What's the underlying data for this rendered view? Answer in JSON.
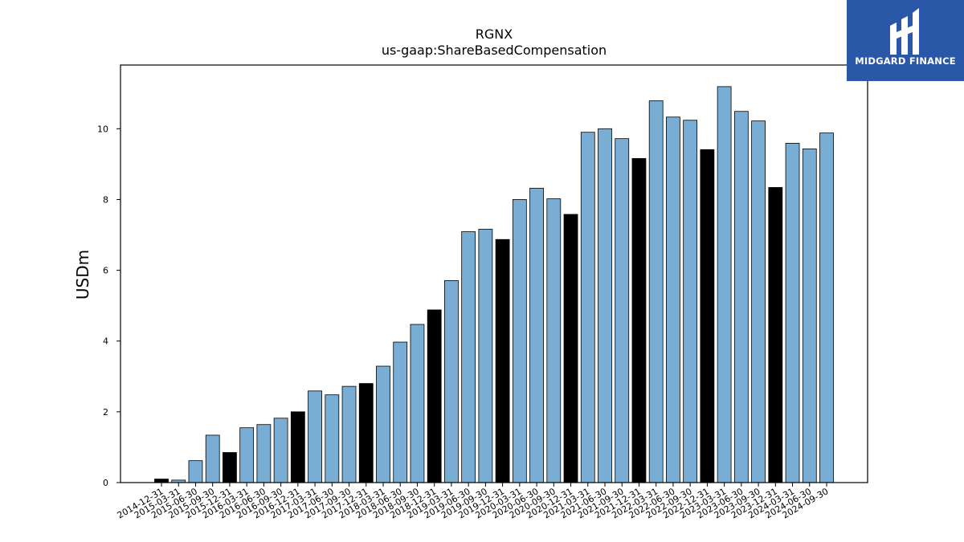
{
  "chart_data": {
    "type": "bar",
    "title": "RGNX",
    "subtitle": "us-gaap:ShareBasedCompensation",
    "xlabel": "",
    "ylabel": "USDm",
    "ylim": [
      0,
      11.8
    ],
    "yticks": [
      0,
      2,
      4,
      6,
      8,
      10
    ],
    "grid": false,
    "colors": {
      "quarter": "#7aadd4",
      "year_end": "#000000",
      "edge": "#000000"
    },
    "categories": [
      "2014-12-31",
      "2015-03-31",
      "2015-06-30",
      "2015-09-30",
      "2015-12-31",
      "2016-03-31",
      "2016-06-30",
      "2016-09-30",
      "2016-12-31",
      "2017-03-31",
      "2017-06-30",
      "2017-09-30",
      "2017-12-31",
      "2018-03-31",
      "2018-06-30",
      "2018-09-30",
      "2018-12-31",
      "2019-03-31",
      "2019-06-30",
      "2019-09-30",
      "2019-12-31",
      "2020-03-31",
      "2020-06-30",
      "2020-09-30",
      "2020-12-31",
      "2021-03-31",
      "2021-06-30",
      "2021-09-30",
      "2021-12-31",
      "2022-03-31",
      "2022-06-30",
      "2022-09-30",
      "2022-12-31",
      "2023-03-31",
      "2023-06-30",
      "2023-09-30",
      "2023-12-31",
      "2024-03-31",
      "2024-06-30",
      "2024-09-30"
    ],
    "values": [
      0.1,
      0.07,
      0.62,
      1.34,
      0.85,
      1.55,
      1.64,
      1.82,
      2.0,
      2.59,
      2.48,
      2.72,
      2.8,
      3.29,
      3.97,
      4.47,
      4.88,
      5.71,
      7.09,
      7.16,
      6.87,
      8.0,
      8.32,
      8.02,
      7.58,
      9.9,
      10.0,
      9.72,
      9.16,
      10.79,
      10.33,
      10.24,
      9.41,
      11.19,
      10.49,
      10.22,
      8.34,
      9.59,
      9.43,
      9.88
    ],
    "year_end": [
      true,
      false,
      false,
      false,
      true,
      false,
      false,
      false,
      true,
      false,
      false,
      false,
      true,
      false,
      false,
      false,
      true,
      false,
      false,
      false,
      true,
      false,
      false,
      false,
      true,
      false,
      false,
      false,
      true,
      false,
      false,
      false,
      true,
      false,
      false,
      false,
      true,
      false,
      false,
      false
    ]
  },
  "logo": {
    "text": "MIDGARD FINANCE",
    "icon": "midgard-logo-icon"
  }
}
